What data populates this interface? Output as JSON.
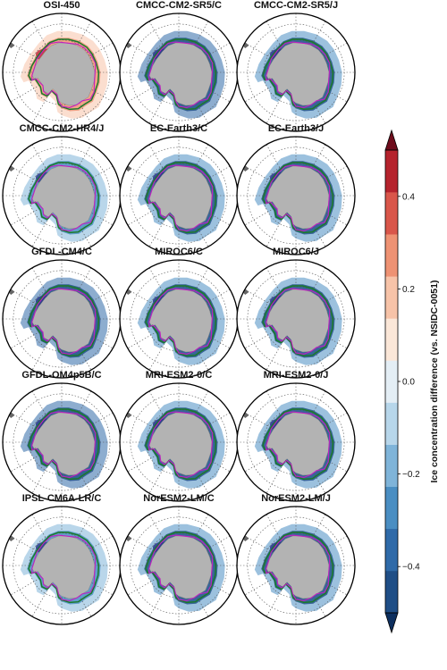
{
  "chart_data": {
    "type": "heatmap",
    "panels": [
      {
        "title": "OSI-450",
        "ice_edges": 1,
        "bias": 0.2
      },
      {
        "title": "CMCC-CM2-SR5/C",
        "ice_edges": 2,
        "bias": -0.4
      },
      {
        "title": "CMCC-CM2-SR5/J",
        "ice_edges": 2,
        "bias": -0.3
      },
      {
        "title": "CMCC-CM2-HR4/J",
        "ice_edges": 2,
        "bias": -0.2
      },
      {
        "title": "EC-Earth3/C",
        "ice_edges": 2,
        "bias": -0.3
      },
      {
        "title": "EC-Earth3/J",
        "ice_edges": 2,
        "bias": -0.3
      },
      {
        "title": "GFDL-CM4/C",
        "ice_edges": 2,
        "bias": -0.4
      },
      {
        "title": "MIROC6/C",
        "ice_edges": 2,
        "bias": -0.3
      },
      {
        "title": "MIROC6/J",
        "ice_edges": 2,
        "bias": -0.3
      },
      {
        "title": "GFDL-OM4p5B/C",
        "ice_edges": 2,
        "bias": -0.4
      },
      {
        "title": "MRI-ESM2-0/C",
        "ice_edges": 2,
        "bias": -0.3
      },
      {
        "title": "MRI-ESM2-0/J",
        "ice_edges": 2,
        "bias": -0.3
      },
      {
        "title": "IPSL-CM6A-LR/C",
        "ice_edges": 2,
        "bias": -0.2
      },
      {
        "title": "NorESM2-LM/C",
        "ice_edges": 2,
        "bias": -0.3
      },
      {
        "title": "NorESM2-LM/J",
        "ice_edges": 2,
        "bias": -0.3
      }
    ],
    "colorbar": {
      "label": "Ice concentration difference (vs. NSIDC-0051)",
      "range": [
        -0.5,
        0.5
      ],
      "ticks": [
        -0.4,
        -0.2,
        0.0,
        0.2,
        0.4
      ],
      "tick_labels": [
        "−0.4",
        "−0.2",
        "0.0",
        "0.2",
        "0.4"
      ],
      "colors": [
        "#1f4e86",
        "#2f6aa8",
        "#4a8ec2",
        "#7fb4d9",
        "#b7d6ea",
        "#e4eef5",
        "#fbe7d8",
        "#f7c3a8",
        "#ee9273",
        "#d9564a",
        "#b5232d"
      ],
      "extend_low": "#0d2f5f",
      "extend_high": "#6e0c1c"
    },
    "colors": {
      "land": "#b3b3b3",
      "observed_edge": "#1a7a2a",
      "model_edge": "#c020c0",
      "deficit": "#2b3c8a",
      "excess": "#c03040"
    }
  }
}
